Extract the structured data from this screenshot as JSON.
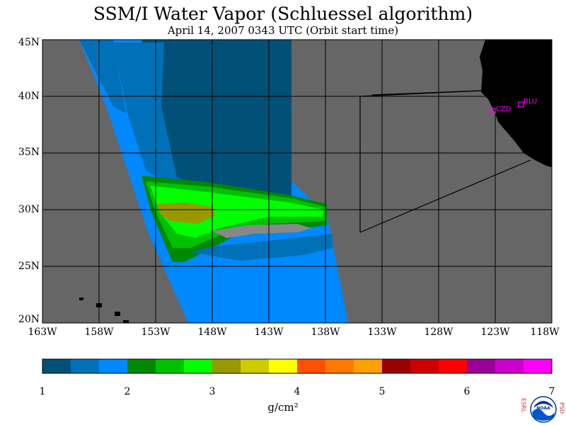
{
  "title": "SSM/I Water Vapor (Schluessel algorithm)",
  "subtitle": "April 14, 2007  0343 UTC  (Orbit start time)",
  "map": {
    "lat_labels": [
      "45N",
      "40N",
      "35N",
      "30N",
      "25N",
      "20N"
    ],
    "lon_labels": [
      "163W",
      "158W",
      "153W",
      "148W",
      "143W",
      "138W",
      "133W",
      "128W",
      "123W",
      "118W"
    ],
    "stations": [
      {
        "name": "CZD"
      },
      {
        "name": "BLU"
      }
    ],
    "colors": {
      "background_gray": "#666666",
      "land": "#000000",
      "station_marker": "#ff00ff"
    }
  },
  "colorbar": {
    "ticks": [
      "1",
      "2",
      "3",
      "4",
      "5",
      "6",
      "7"
    ],
    "units": "g/cm²",
    "colors": [
      "#005078",
      "#0070b8",
      "#0088ff",
      "#008800",
      "#00c000",
      "#00ff00",
      "#989800",
      "#cccc00",
      "#ffff00",
      "#ff5000",
      "#ff7800",
      "#ffa000",
      "#980000",
      "#cc0000",
      "#ff0000",
      "#980098",
      "#cc00cc",
      "#ff00ff"
    ]
  },
  "logo": {
    "left_letters": "ESRL",
    "right_letters": "PSD",
    "center_text": "NOAA"
  }
}
